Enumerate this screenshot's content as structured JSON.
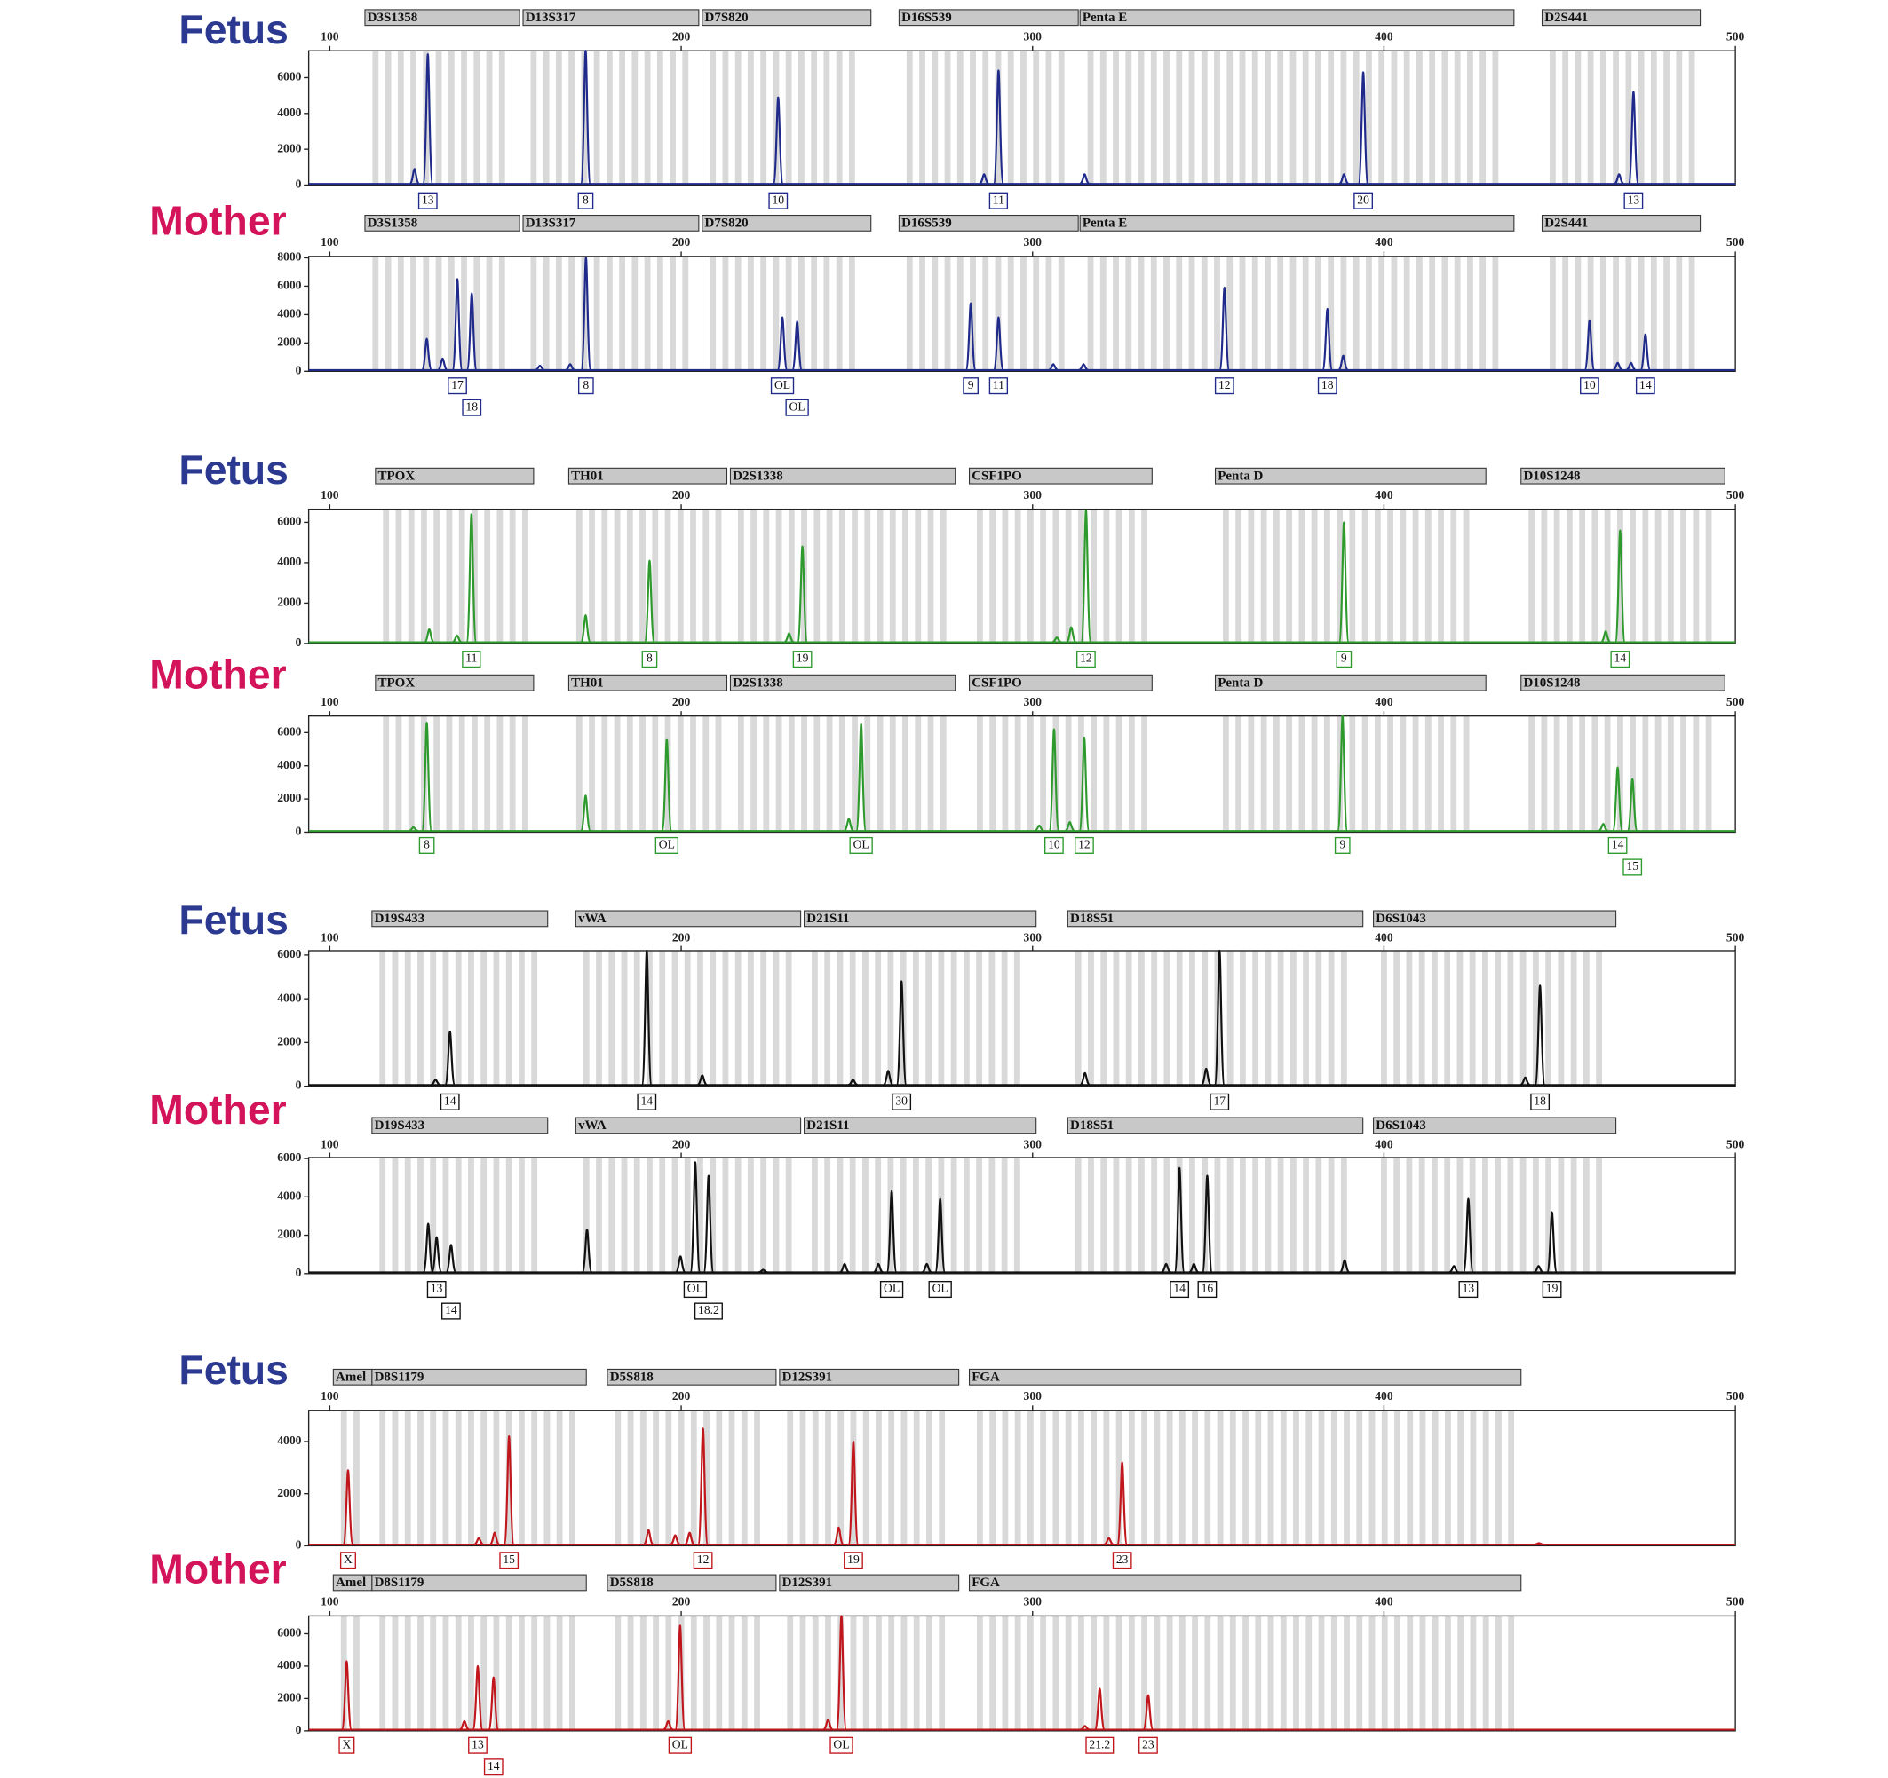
{
  "chart_data": [
    {
      "type": "line",
      "title": "Fetus",
      "title_color": "#2b3990",
      "color": "#1f2a8a",
      "xlim": [
        94,
        500
      ],
      "xticks": [
        100,
        200,
        300,
        400,
        500
      ],
      "ylim": [
        0,
        7500
      ],
      "yticks": [
        0,
        2000,
        4000,
        6000
      ],
      "loci": [
        {
          "name": "D3S1358",
          "range": [
            110,
            154
          ]
        },
        {
          "name": "D13S317",
          "range": [
            155,
            205
          ]
        },
        {
          "name": "D7S820",
          "range": [
            206,
            254
          ]
        },
        {
          "name": "D16S539",
          "range": [
            262,
            313
          ]
        },
        {
          "name": "Penta E",
          "range": [
            313.5,
            437
          ]
        },
        {
          "name": "D2S441",
          "range": [
            445,
            490
          ]
        }
      ],
      "x": [
        124.1,
        127.9,
        172.8,
        227.6,
        286.2,
        290.3,
        314.8,
        388.6,
        394.1,
        466.9,
        471.0
      ],
      "values": [
        900,
        7300,
        7500,
        4900,
        600,
        6400,
        600,
        600,
        6300,
        600,
        5200
      ],
      "allele_labels": [
        null,
        "13",
        "8",
        "10",
        null,
        "11",
        null,
        null,
        "20",
        null,
        "13"
      ]
    },
    {
      "type": "line",
      "title": "Mother",
      "title_color": "#d4145a",
      "color": "#1f2a8a",
      "xlim": [
        94,
        500
      ],
      "xticks": [
        100,
        200,
        300,
        400,
        500
      ],
      "ylim": [
        0,
        8100
      ],
      "yticks": [
        0,
        2000,
        4000,
        6000,
        8000
      ],
      "loci": [
        {
          "name": "D3S1358",
          "range": [
            110,
            154
          ]
        },
        {
          "name": "D13S317",
          "range": [
            155,
            205
          ]
        },
        {
          "name": "D7S820",
          "range": [
            206,
            254
          ]
        },
        {
          "name": "D16S539",
          "range": [
            262,
            313
          ]
        },
        {
          "name": "Penta E",
          "range": [
            313.5,
            437
          ]
        },
        {
          "name": "D2S441",
          "range": [
            445,
            490
          ]
        }
      ],
      "x": [
        127.6,
        132.1,
        136.3,
        140.4,
        159.8,
        168.4,
        172.9,
        228.8,
        233.0,
        282.4,
        290.3,
        305.9,
        314.5,
        354.6,
        383.9,
        388.4,
        458.5,
        466.5,
        470.3,
        474.4
      ],
      "values": [
        2300,
        900,
        6500,
        5500,
        400,
        500,
        8000,
        3800,
        3500,
        4800,
        3800,
        500,
        500,
        5900,
        4400,
        1100,
        3600,
        600,
        600,
        2600
      ],
      "allele_labels": [
        null,
        null,
        "17",
        "18",
        null,
        null,
        "8",
        "OL",
        "OL",
        "9",
        "11",
        null,
        null,
        "12",
        "18",
        null,
        "10",
        null,
        null,
        "14"
      ]
    },
    {
      "type": "line",
      "title": "Fetus",
      "title_color": "#2b3990",
      "color": "#2e9a2e",
      "xlim": [
        94,
        500
      ],
      "xticks": [
        100,
        200,
        300,
        400,
        500
      ],
      "ylim": [
        0,
        6650
      ],
      "yticks": [
        0,
        2000,
        4000,
        6000
      ],
      "loci": [
        {
          "name": "TPOX",
          "range": [
            113,
            158
          ]
        },
        {
          "name": "TH01",
          "range": [
            168,
            213
          ]
        },
        {
          "name": "D2S1338",
          "range": [
            214,
            278
          ]
        },
        {
          "name": "CSF1PO",
          "range": [
            282,
            334
          ]
        },
        {
          "name": "Penta D",
          "range": [
            352,
            429
          ]
        },
        {
          "name": "D10S1248",
          "range": [
            439,
            497
          ]
        }
      ],
      "x": [
        128.3,
        136.2,
        140.3,
        172.8,
        191.0,
        230.7,
        234.5,
        306.9,
        311.0,
        315.2,
        388.6,
        463.1,
        467.2
      ],
      "values": [
        700,
        400,
        6400,
        1400,
        4100,
        500,
        4800,
        300,
        800,
        6600,
        6000,
        600,
        5600
      ],
      "allele_labels": [
        null,
        null,
        "11",
        null,
        "8",
        null,
        "19",
        null,
        null,
        "12",
        "9",
        null,
        "14"
      ]
    },
    {
      "type": "line",
      "title": "Mother",
      "title_color": "#d4145a",
      "color": "#2e9a2e",
      "xlim": [
        94,
        500
      ],
      "xticks": [
        100,
        200,
        300,
        400,
        500
      ],
      "ylim": [
        0,
        7000
      ],
      "yticks": [
        0,
        2000,
        4000,
        6000
      ],
      "loci": [
        {
          "name": "TPOX",
          "range": [
            113,
            158
          ]
        },
        {
          "name": "TH01",
          "range": [
            168,
            213
          ]
        },
        {
          "name": "D2S1338",
          "range": [
            214,
            278
          ]
        },
        {
          "name": "CSF1PO",
          "range": [
            282,
            334
          ]
        },
        {
          "name": "Penta D",
          "range": [
            352,
            429
          ]
        },
        {
          "name": "D10S1248",
          "range": [
            439,
            497
          ]
        }
      ],
      "x": [
        123.8,
        127.6,
        172.8,
        195.9,
        247.7,
        251.2,
        301.9,
        306.1,
        310.6,
        314.7,
        388.2,
        462.4,
        466.5,
        470.7
      ],
      "values": [
        300,
        6600,
        2200,
        5600,
        800,
        6500,
        400,
        6200,
        600,
        5700,
        7000,
        500,
        3900,
        3200
      ],
      "allele_labels": [
        null,
        "8",
        null,
        "OL",
        null,
        "OL",
        null,
        "10",
        null,
        "12",
        "9",
        null,
        "14",
        "15"
      ]
    },
    {
      "type": "line",
      "title": "Fetus",
      "title_color": "#2b3990",
      "color": "#111111",
      "xlim": [
        94,
        500
      ],
      "xticks": [
        100,
        200,
        300,
        400,
        500
      ],
      "ylim": [
        0,
        6200
      ],
      "yticks": [
        0,
        2000,
        4000,
        6000
      ],
      "loci": [
        {
          "name": "D19S433",
          "range": [
            112,
            162
          ]
        },
        {
          "name": "vWA",
          "range": [
            170,
            234
          ]
        },
        {
          "name": "D21S11",
          "range": [
            235,
            301
          ]
        },
        {
          "name": "D18S51",
          "range": [
            310,
            394
          ]
        },
        {
          "name": "D6S1043",
          "range": [
            397,
            466
          ]
        }
      ],
      "x": [
        130.1,
        134.2,
        190.2,
        206.0,
        248.9,
        258.9,
        262.7,
        314.9,
        349.4,
        353.2,
        440.2,
        444.4
      ],
      "values": [
        300,
        2500,
        6200,
        500,
        300,
        700,
        4800,
        600,
        800,
        6200,
        400,
        4600
      ],
      "allele_labels": [
        null,
        "14",
        "14",
        null,
        null,
        null,
        "30",
        null,
        null,
        "17",
        null,
        "18"
      ]
    },
    {
      "type": "line",
      "title": "Mother",
      "title_color": "#d4145a",
      "color": "#111111",
      "xlim": [
        94,
        500
      ],
      "xticks": [
        100,
        200,
        300,
        400,
        500
      ],
      "ylim": [
        0,
        6050
      ],
      "yticks": [
        0,
        2000,
        4000,
        6000
      ],
      "loci": [
        {
          "name": "D19S433",
          "range": [
            112,
            162
          ]
        },
        {
          "name": "vWA",
          "range": [
            170,
            234
          ]
        },
        {
          "name": "D21S11",
          "range": [
            235,
            301
          ]
        },
        {
          "name": "D18S51",
          "range": [
            310,
            394
          ]
        },
        {
          "name": "D6S1043",
          "range": [
            397,
            466
          ]
        }
      ],
      "x": [
        128.0,
        130.4,
        134.5,
        173.2,
        199.8,
        204.0,
        207.8,
        223.3,
        246.5,
        256.1,
        259.9,
        269.9,
        273.7,
        338.0,
        341.8,
        345.9,
        349.7,
        388.8,
        419.9,
        424.0,
        444.0,
        447.8
      ],
      "values": [
        2600,
        1900,
        1500,
        2300,
        900,
        5800,
        5100,
        200,
        500,
        500,
        4300,
        500,
        3900,
        500,
        5500,
        500,
        5100,
        700,
        400,
        3900,
        400,
        3200
      ],
      "allele_labels": [
        null,
        "13",
        "14",
        null,
        null,
        "OL",
        "18.2",
        null,
        null,
        null,
        "OL",
        null,
        "OL",
        null,
        "14",
        null,
        "16",
        null,
        null,
        "13",
        null,
        "19"
      ]
    },
    {
      "type": "line",
      "title": "Fetus",
      "title_color": "#2b3990",
      "color": "#c0161c",
      "xlim": [
        94,
        500
      ],
      "xticks": [
        100,
        200,
        300,
        400,
        500
      ],
      "ylim": [
        0,
        5200
      ],
      "yticks": [
        0,
        2000,
        4000
      ],
      "loci": [
        {
          "name": "Amel",
          "range": [
            101,
            112
          ]
        },
        {
          "name": "D8S1179",
          "range": [
            112,
            173
          ]
        },
        {
          "name": "D5S818",
          "range": [
            179,
            227
          ]
        },
        {
          "name": "D12S391",
          "range": [
            228,
            279
          ]
        },
        {
          "name": "FGA",
          "range": [
            282,
            439
          ]
        }
      ],
      "x": [
        105.2,
        142.4,
        146.9,
        151.0,
        190.7,
        198.3,
        202.4,
        206.2,
        244.8,
        249.0,
        321.7,
        325.5,
        444.1
      ],
      "values": [
        2900,
        300,
        500,
        4200,
        600,
        400,
        500,
        4500,
        700,
        4000,
        300,
        3200,
        100
      ],
      "allele_labels": [
        "X",
        null,
        null,
        "15",
        null,
        null,
        null,
        "12",
        null,
        "19",
        null,
        "23",
        null
      ]
    },
    {
      "type": "line",
      "title": "Mother",
      "title_color": "#d4145a",
      "color": "#c0161c",
      "xlim": [
        94,
        500
      ],
      "xticks": [
        100,
        200,
        300,
        400,
        500
      ],
      "ylim": [
        0,
        7100
      ],
      "yticks": [
        0,
        2000,
        4000,
        6000
      ],
      "loci": [
        {
          "name": "Amel",
          "range": [
            101,
            112
          ]
        },
        {
          "name": "D8S1179",
          "range": [
            112,
            173
          ]
        },
        {
          "name": "D5S818",
          "range": [
            179,
            227
          ]
        },
        {
          "name": "D12S391",
          "range": [
            228,
            279
          ]
        },
        {
          "name": "FGA",
          "range": [
            282,
            439
          ]
        }
      ],
      "x": [
        104.8,
        138.3,
        142.1,
        146.6,
        196.3,
        199.7,
        241.8,
        245.6,
        314.9,
        319.1,
        332.9
      ],
      "values": [
        4300,
        600,
        4000,
        3300,
        600,
        6500,
        700,
        7100,
        300,
        2600,
        2200
      ],
      "allele_labels": [
        "X",
        null,
        "13",
        "14",
        null,
        "OL",
        null,
        "OL",
        null,
        "21.2",
        "23"
      ]
    }
  ]
}
